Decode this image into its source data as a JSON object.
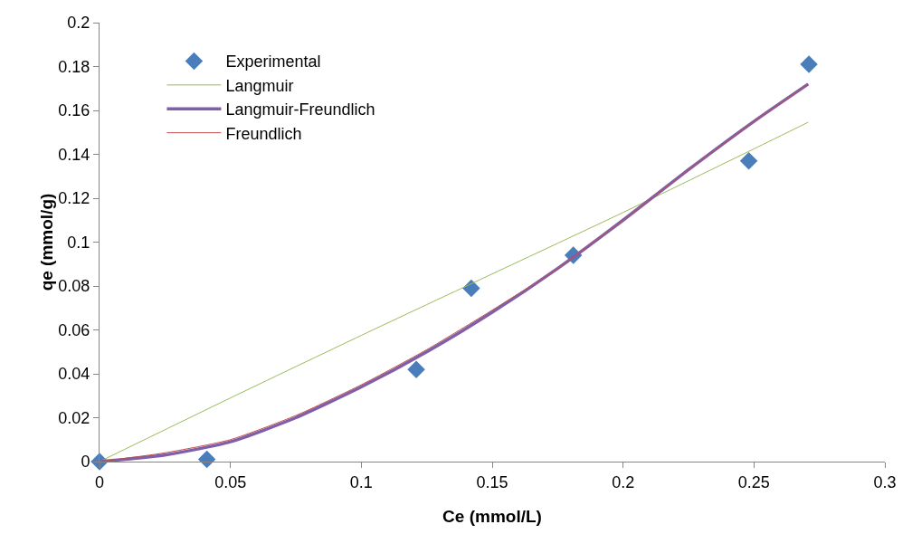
{
  "chart_data": {
    "type": "scatter",
    "xlabel": "Ce (mmol/L)",
    "ylabel": "qe (mmol/g)",
    "xlim": [
      0,
      0.3
    ],
    "xticks": [
      0,
      0.05,
      0.1,
      0.15,
      0.2,
      0.25,
      0.3
    ],
    "ylim": [
      0,
      0.2
    ],
    "yticks": [
      0,
      0.02,
      0.04,
      0.06,
      0.08,
      0.1,
      0.12,
      0.14,
      0.16,
      0.18,
      0.2
    ],
    "grid": false,
    "legend": "top left",
    "series": [
      {
        "name": "Experimental",
        "marker": "diamond",
        "color": "#4a7ebb",
        "x": [
          0,
          0.041,
          0.121,
          0.142,
          0.181,
          0.248,
          0.271
        ],
        "values": [
          0,
          0.001,
          0.042,
          0.079,
          0.094,
          0.137,
          0.181
        ]
      },
      {
        "name": "Langmuir",
        "type": "line",
        "marker": "none",
        "color": "#9bbb59",
        "x": [
          0,
          0.05,
          0.1,
          0.15,
          0.2,
          0.25,
          0.2707
        ],
        "values": [
          0,
          0.029,
          0.0575,
          0.0855,
          0.1135,
          0.1425,
          0.1546
        ]
      },
      {
        "name": "Langmuir-Freundlich",
        "type": "line",
        "marker": "none",
        "color": "#7f5fa9",
        "x": [
          0,
          0.025,
          0.05,
          0.075,
          0.1,
          0.125,
          0.15,
          0.175,
          0.2,
          0.225,
          0.25,
          0.2707
        ],
        "values": [
          0,
          0.003,
          0.009,
          0.02,
          0.034,
          0.05,
          0.068,
          0.088,
          0.11,
          0.133,
          0.155,
          0.172
        ]
      },
      {
        "name": "Freundlich",
        "type": "line",
        "marker": "none",
        "color": "#c0504d",
        "x": [
          0,
          0.025,
          0.05,
          0.075,
          0.1,
          0.125,
          0.15,
          0.175,
          0.2,
          0.225,
          0.25,
          0.2707
        ],
        "values": [
          0,
          0.004,
          0.01,
          0.021,
          0.035,
          0.051,
          0.069,
          0.088,
          0.11,
          0.133,
          0.155,
          0.172
        ]
      }
    ]
  }
}
